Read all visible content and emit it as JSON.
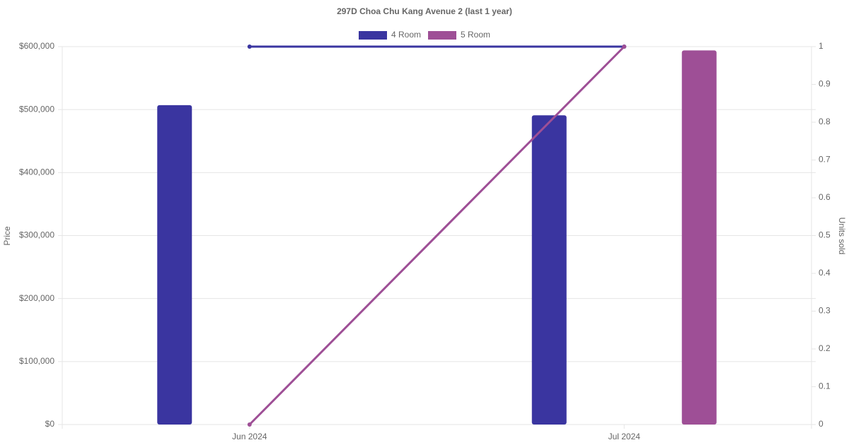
{
  "chart_data": {
    "type": "bar-line",
    "title": "297D Choa Chu Kang Avenue 2 (last 1 year)",
    "y_label": "Price",
    "y2_label": "Units sold",
    "categories": [
      "Jun 2024",
      "Jul 2024"
    ],
    "series": [
      {
        "name": "4 Room",
        "color": "#3a35a0",
        "values": [
          507000,
          491000
        ],
        "units_sold": [
          1,
          1
        ]
      },
      {
        "name": "5 Room",
        "color": "#9e4f96",
        "values": [
          null,
          594000
        ],
        "units_sold": [
          0,
          1
        ]
      }
    ],
    "ylim": [
      0,
      600000
    ],
    "yticks": [
      {
        "value": 0,
        "label": "$0"
      },
      {
        "value": 100000,
        "label": "$100,000"
      },
      {
        "value": 200000,
        "label": "$200,000"
      },
      {
        "value": 300000,
        "label": "$300,000"
      },
      {
        "value": 400000,
        "label": "$400,000"
      },
      {
        "value": 500000,
        "label": "$500,000"
      },
      {
        "value": 600000,
        "label": "$600,000"
      }
    ],
    "y2lim": [
      0,
      1
    ],
    "y2ticks": [
      0,
      0.1,
      0.2,
      0.3,
      0.4,
      0.5,
      0.6,
      0.7,
      0.8,
      0.9,
      1
    ],
    "grid": true
  }
}
